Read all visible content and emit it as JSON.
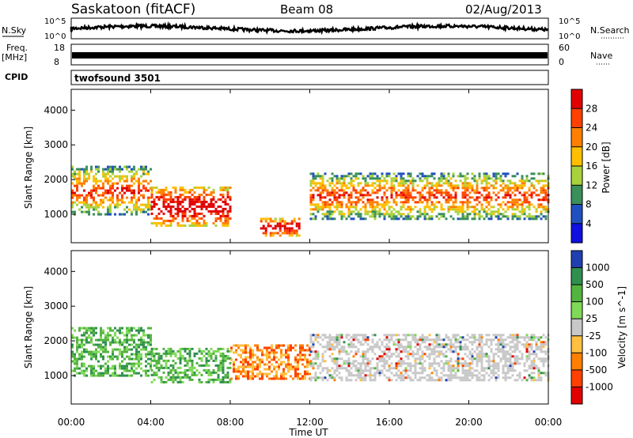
{
  "header": {
    "station": "Saskatoon (fitACF)",
    "beam": "Beam 08",
    "date": "02/Aug/2013"
  },
  "noise_panel": {
    "left_label": "N.Sky",
    "right_label": "N.Search",
    "ticks_left": [
      "10^5",
      "10^0"
    ],
    "ticks_right": [
      "10^5",
      "10^0"
    ]
  },
  "freq_panel": {
    "left_label": "Freq.",
    "left_unit": "[MHz]",
    "right_label": "Nave",
    "ticks_left": [
      "18",
      "8"
    ],
    "ticks_right": [
      "60",
      "0"
    ]
  },
  "cpid_panel": {
    "label": "CPID",
    "program": "twofsound 3501"
  },
  "x_axis": {
    "title": "Time UT",
    "ticks": [
      "00:00",
      "04:00",
      "08:00",
      "12:00",
      "16:00",
      "20:00",
      "00:00"
    ]
  },
  "chart_data": [
    {
      "type": "heatmap",
      "variable": "power",
      "ylabel": "Slant Range [km]",
      "yticks": [
        "4000",
        "3000",
        "2000",
        "1000"
      ],
      "ylim": [
        180,
        4600
      ],
      "xlim_hours": [
        0,
        24
      ],
      "colorbar": {
        "label": "Power [dB]",
        "ticks": [
          "28",
          "24",
          "20",
          "16",
          "12",
          "8",
          "4"
        ],
        "colors": [
          "#e00000",
          "#ff4000",
          "#ff8000",
          "#ffbf00",
          "#a8d23c",
          "#3a8f5a",
          "#2050c0",
          "#1010e0"
        ]
      },
      "bands": [
        {
          "hours": [
            0,
            4
          ],
          "range_km": [
            1000,
            2400
          ],
          "level": "high"
        },
        {
          "hours": [
            4,
            8
          ],
          "range_km": [
            700,
            1800
          ],
          "level": "peak"
        },
        {
          "hours": [
            9.5,
            11.5
          ],
          "range_km": [
            400,
            900
          ],
          "level": "peak"
        },
        {
          "hours": [
            12,
            24
          ],
          "range_km": [
            900,
            2200
          ],
          "level": "high"
        }
      ]
    },
    {
      "type": "heatmap",
      "variable": "velocity",
      "ylabel": "Slant Range [km]",
      "yticks": [
        "4000",
        "3000",
        "2000",
        "1000"
      ],
      "ylim": [
        180,
        4600
      ],
      "xlim_hours": [
        0,
        24
      ],
      "colorbar": {
        "label": "Velocity [m s^-1]",
        "ticks": [
          "1000",
          "500",
          "100",
          "25",
          "-25",
          "-100",
          "-500",
          "-1000"
        ],
        "colors": [
          "#2040b0",
          "#2f8f4f",
          "#53b33f",
          "#7fd957",
          "#c8c8c8",
          "#ffbf40",
          "#ff8000",
          "#ff4000",
          "#e00000"
        ]
      },
      "bands": [
        {
          "hours": [
            0,
            4
          ],
          "range_km": [
            1000,
            2400
          ],
          "velocity": "positive"
        },
        {
          "hours": [
            4,
            8
          ],
          "range_km": [
            800,
            1800
          ],
          "velocity": "positive"
        },
        {
          "hours": [
            8,
            12
          ],
          "range_km": [
            900,
            1900
          ],
          "velocity": "negative"
        },
        {
          "hours": [
            12,
            24
          ],
          "range_km": [
            900,
            2200
          ],
          "velocity": "near-zero"
        }
      ]
    }
  ]
}
